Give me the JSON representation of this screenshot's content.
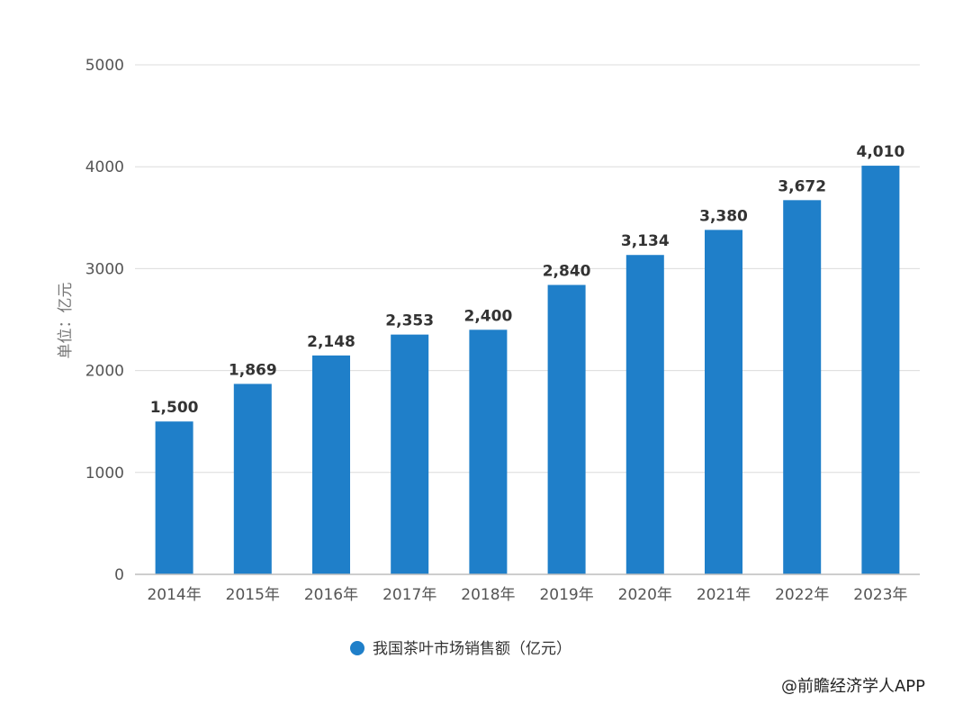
{
  "chart_data": {
    "type": "bar",
    "categories": [
      "2014年",
      "2015年",
      "2016年",
      "2017年",
      "2018年",
      "2019年",
      "2020年",
      "2021年",
      "2022年",
      "2023年"
    ],
    "series": [
      {
        "name": "我国茶叶市场销售额（亿元）",
        "values": [
          1500,
          1869,
          2148,
          2353,
          2400,
          2840,
          3134,
          3380,
          3672,
          4010
        ],
        "data_labels": [
          "1,500",
          "1,869",
          "2,148",
          "2,353",
          "2,400",
          "2,840",
          "3,134",
          "3,380",
          "3,672",
          "4,010"
        ]
      }
    ],
    "ylabel": "单位：亿元",
    "ylim": [
      0,
      5000
    ],
    "yticks": [
      0,
      1000,
      2000,
      3000,
      4000,
      5000
    ],
    "grid": true,
    "legend_position": "bottom-center",
    "colors": {
      "bar": "#1f7fc9",
      "grid": "#dcdcdc"
    }
  },
  "source": "@前瞻经济学人APP"
}
